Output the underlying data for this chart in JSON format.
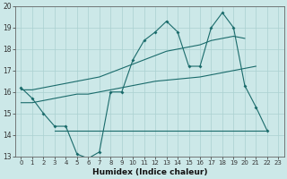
{
  "xlabel": "Humidex (Indice chaleur)",
  "bg_color": "#cce8e8",
  "line_color": "#1a6b6b",
  "grid_color": "#aad0d0",
  "xlim": [
    -0.5,
    23.5
  ],
  "ylim": [
    13,
    20
  ],
  "xticks": [
    0,
    1,
    2,
    3,
    4,
    5,
    6,
    7,
    8,
    9,
    10,
    11,
    12,
    13,
    14,
    15,
    16,
    17,
    18,
    19,
    20,
    21,
    22,
    23
  ],
  "yticks": [
    13,
    14,
    15,
    16,
    17,
    18,
    19,
    20
  ],
  "line1_y": [
    16.2,
    15.7,
    15.0,
    14.4,
    14.4,
    13.1,
    12.9,
    13.2,
    16.0,
    16.0,
    17.5,
    18.4,
    18.8,
    19.3,
    18.8,
    17.2,
    17.2,
    19.0,
    19.7,
    19.0,
    16.3,
    15.3,
    14.2,
    null
  ],
  "line2_y": [
    null,
    null,
    null,
    14.2,
    14.2,
    14.2,
    14.2,
    14.2,
    14.2,
    14.2,
    14.2,
    14.2,
    14.2,
    14.2,
    14.2,
    14.2,
    14.2,
    14.2,
    14.2,
    14.2,
    14.2,
    14.2,
    14.2,
    null
  ],
  "line3_y": [
    15.5,
    15.5,
    15.6,
    15.7,
    15.8,
    15.9,
    15.9,
    16.0,
    16.1,
    16.2,
    16.3,
    16.4,
    16.5,
    16.55,
    16.6,
    16.65,
    16.7,
    16.8,
    16.9,
    17.0,
    17.1,
    17.2,
    null,
    null
  ],
  "line4_y": [
    16.1,
    16.1,
    16.2,
    16.3,
    16.4,
    16.5,
    16.6,
    16.7,
    16.9,
    17.1,
    17.3,
    17.5,
    17.7,
    17.9,
    18.0,
    18.1,
    18.2,
    18.4,
    18.5,
    18.6,
    18.5,
    null,
    null,
    null
  ]
}
